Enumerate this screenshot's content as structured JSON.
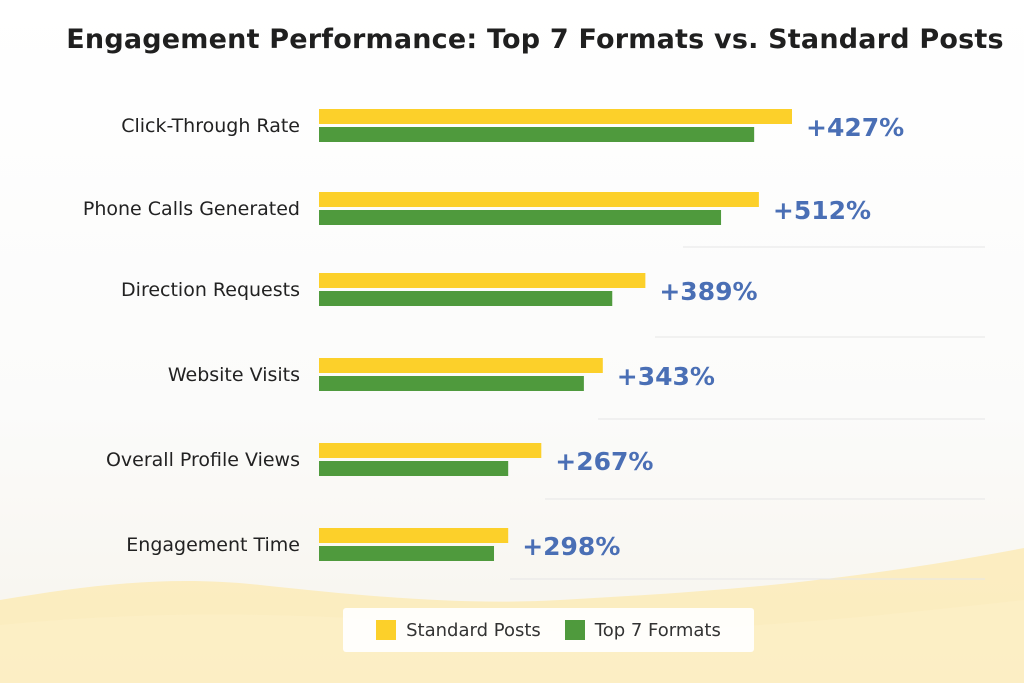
{
  "chart_data": {
    "type": "bar",
    "orientation": "horizontal",
    "title": "Engagement Performance: Top 7 Formats vs. Standard Posts",
    "categories": [
      "Click-Through Rate",
      "Phone Calls Generated",
      "Direction Requests",
      "Website Visits",
      "Overall Profile Views",
      "Engagement Time"
    ],
    "series": [
      {
        "name": "Standard Posts",
        "color": "#fcd02a",
        "values": [
          100,
          93,
          69,
          60,
          47,
          40
        ]
      },
      {
        "name": "Top 7 Formats",
        "color": "#4f9a3d",
        "values": [
          92,
          85,
          62,
          56,
          40,
          37
        ]
      }
    ],
    "data_labels": [
      "+427%",
      "+512%",
      "+389%",
      "+343%",
      "+267%",
      "+298%"
    ],
    "label_color": "#4a6fb5",
    "xlim": [
      0,
      100
    ],
    "grid": false,
    "legend_position": "bottom"
  },
  "legend": {
    "items": [
      {
        "label": "Standard Posts",
        "color": "#fcd02a"
      },
      {
        "label": "Top 7 Formats",
        "color": "#4f9a3d"
      }
    ]
  },
  "colors": {
    "wave": "#fce9b0",
    "separator": "#e6e6e6"
  }
}
